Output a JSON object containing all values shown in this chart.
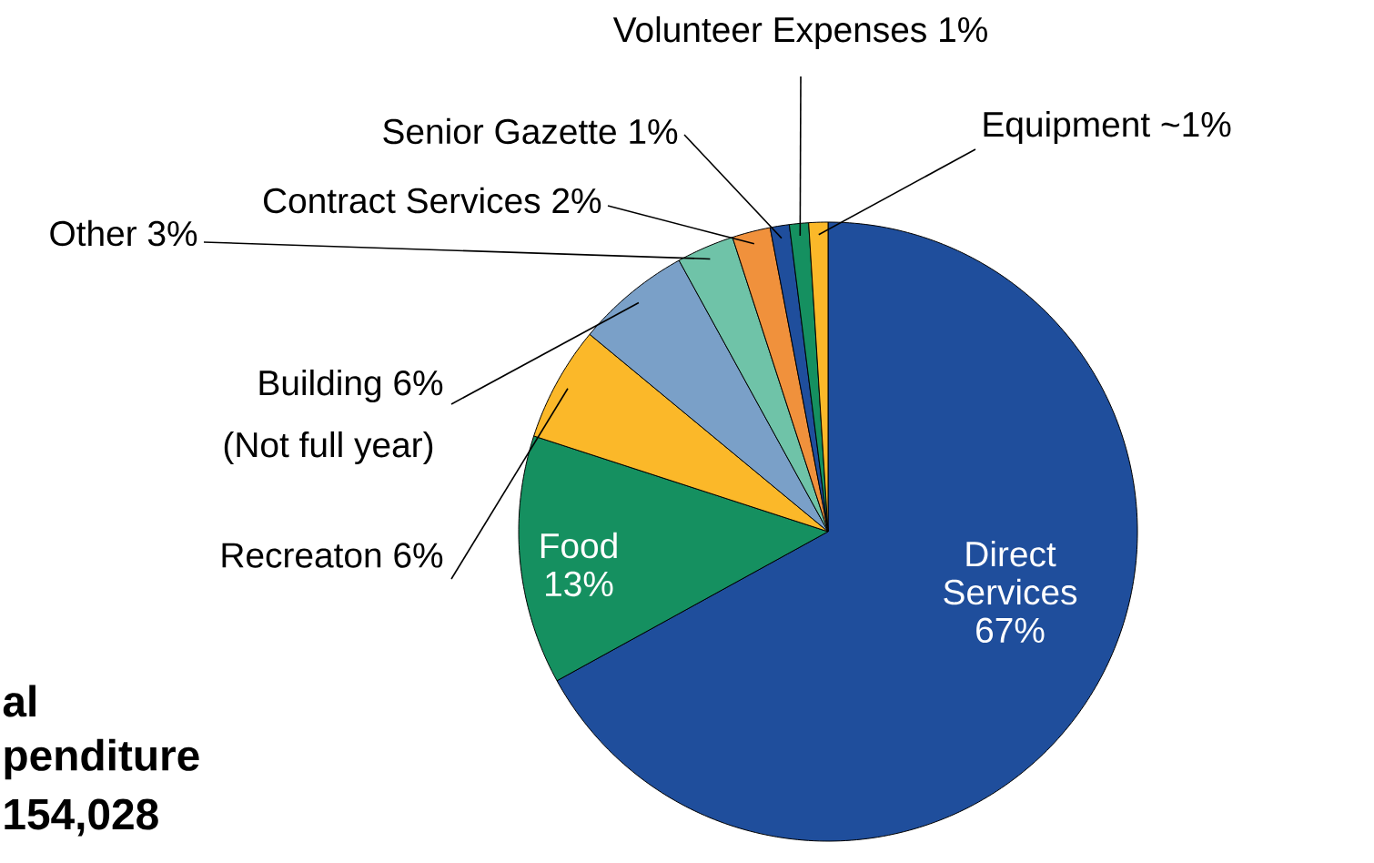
{
  "chart_data": {
    "type": "pie",
    "categories": [
      "Direct Services",
      "Food",
      "Recreaton",
      "Building",
      "Other",
      "Contract Services",
      "Senior Gazette",
      "Volunteer Expenses",
      "Equipment"
    ],
    "values": [
      67,
      13,
      6,
      6,
      3,
      2,
      1,
      1,
      1
    ],
    "value_labels": [
      "67%",
      "13%",
      "6%",
      "6%",
      "3%",
      "2%",
      "1%",
      "1%",
      "~1%"
    ],
    "colors": [
      "#1f4e9c",
      "#159060",
      "#fbb829",
      "#7aa0c8",
      "#6fc3a8",
      "#f0913c",
      "#1f4e9c",
      "#159060",
      "#fbb829"
    ],
    "annotations": [
      "(Not full year)",
      "al",
      "penditure",
      "154,028"
    ]
  }
}
